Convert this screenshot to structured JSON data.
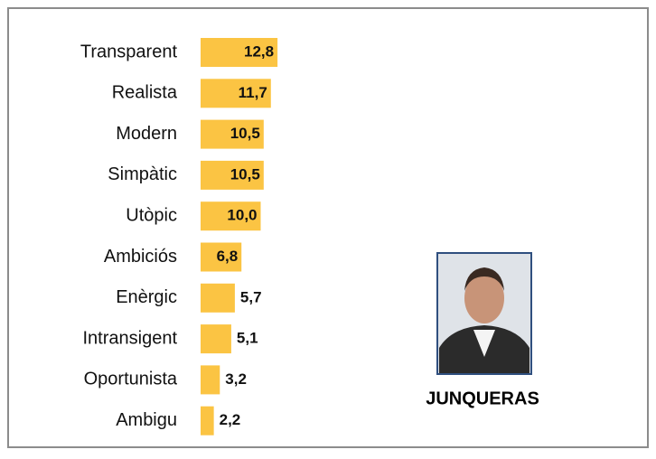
{
  "chart_data": {
    "type": "bar",
    "orientation": "horizontal",
    "categories": [
      "Transparent",
      "Realista",
      "Modern",
      "Simpàtic",
      "Utòpic",
      "Ambiciós",
      "Enèrgic",
      "Intransigent",
      "Oportunista",
      "Ambigu"
    ],
    "values": [
      12.8,
      11.7,
      10.5,
      10.5,
      10.0,
      6.8,
      5.7,
      5.1,
      3.2,
      2.2
    ],
    "value_labels": [
      "12,8",
      "11,7",
      "10,5",
      "10,5",
      "10,0",
      "6,8",
      "5,7",
      "5,1",
      "3,2",
      "2,2"
    ],
    "color": "#fbc443",
    "annotations": [
      "JUNQUERAS"
    ]
  }
}
